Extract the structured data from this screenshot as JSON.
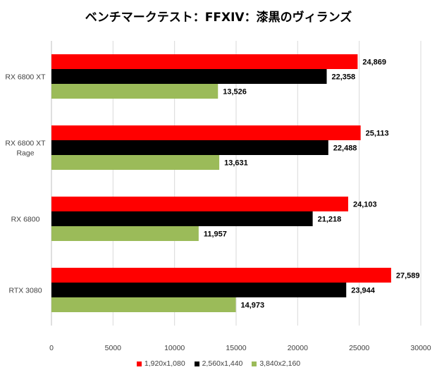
{
  "chart_data": {
    "type": "bar",
    "orientation": "horizontal",
    "title": "ベンチマークテスト：FFXIV：漆黒のヴィランズ",
    "categories": [
      "RX 6800 XT",
      "RX 6800 XT Rage",
      "RX 6800",
      "RTX 3080"
    ],
    "category_lines": [
      [
        "RX 6800 XT"
      ],
      [
        "RX 6800 XT",
        "Rage"
      ],
      [
        "RX 6800"
      ],
      [
        "RTX 3080"
      ]
    ],
    "series": [
      {
        "name": "1,920x1,080",
        "color": "#ff0000",
        "values": [
          24869,
          25113,
          24103,
          27589
        ],
        "labels": [
          "24,869",
          "25,113",
          "24,103",
          "27,589"
        ]
      },
      {
        "name": "2,560x1,440",
        "color": "#000000",
        "values": [
          22358,
          22488,
          21218,
          23944
        ],
        "labels": [
          "22,358",
          "22,488",
          "21,218",
          "23,944"
        ]
      },
      {
        "name": "3,840x2,160",
        "color": "#9bbb59",
        "values": [
          13526,
          13631,
          11957,
          14973
        ],
        "labels": [
          "13,526",
          "13,631",
          "11,957",
          "14,973"
        ]
      }
    ],
    "xlim": [
      0,
      30000
    ],
    "xticks": [
      0,
      5000,
      10000,
      15000,
      20000,
      25000,
      30000
    ],
    "grid": true,
    "legend_position": "bottom"
  }
}
